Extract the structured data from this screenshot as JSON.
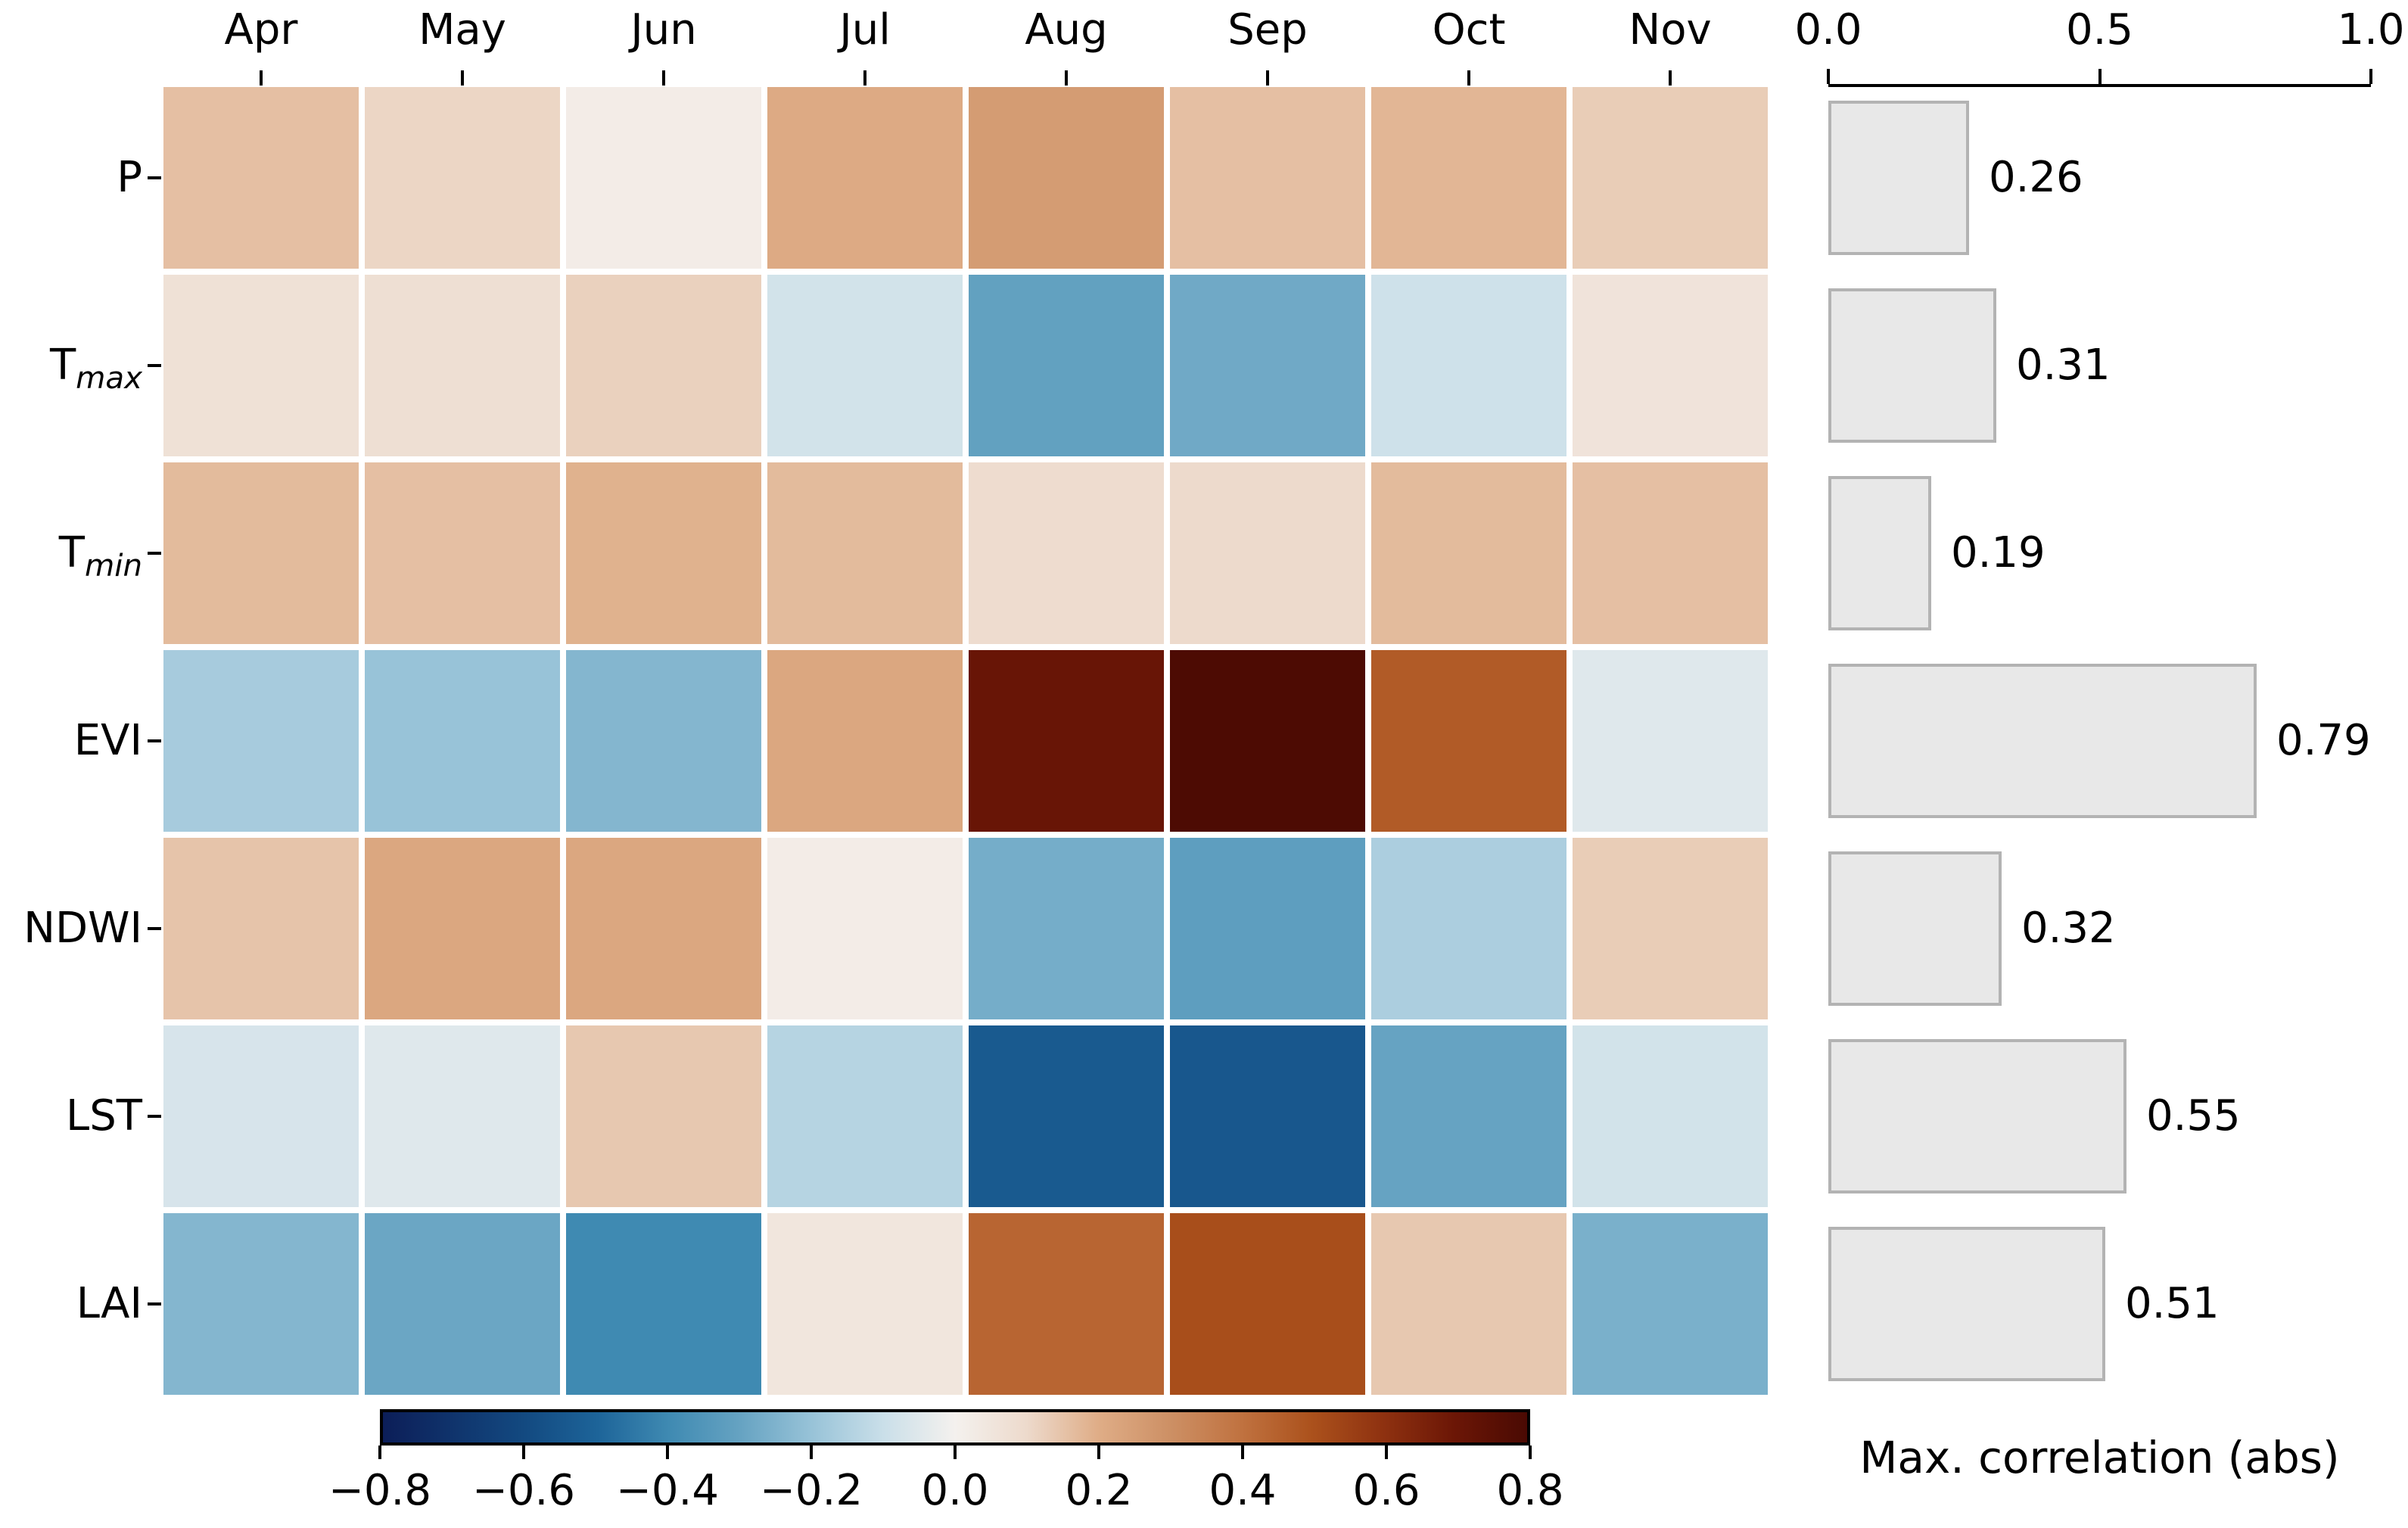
{
  "chart_data": {
    "type": "heatmap",
    "heatmap": {
      "columns": [
        "Apr",
        "May",
        "Jun",
        "Jul",
        "Aug",
        "Sep",
        "Oct",
        "Nov"
      ],
      "rows": [
        {
          "label": "P",
          "sub": ""
        },
        {
          "label": "T",
          "sub": "max"
        },
        {
          "label": "T",
          "sub": "min"
        },
        {
          "label": "EVI",
          "sub": ""
        },
        {
          "label": "NDWI",
          "sub": ""
        },
        {
          "label": "LST",
          "sub": ""
        },
        {
          "label": "LAI",
          "sub": ""
        }
      ],
      "values": [
        [
          0.16,
          0.11,
          0.02,
          0.21,
          0.26,
          0.16,
          0.18,
          0.13
        ],
        [
          0.07,
          0.08,
          0.12,
          -0.08,
          -0.31,
          -0.28,
          -0.09,
          0.06
        ],
        [
          0.17,
          0.16,
          0.19,
          0.17,
          0.09,
          0.1,
          0.17,
          0.16
        ],
        [
          -0.17,
          -0.2,
          -0.24,
          0.22,
          0.71,
          0.79,
          0.47,
          -0.05
        ],
        [
          0.15,
          0.22,
          0.22,
          0.02,
          -0.27,
          -0.32,
          -0.16,
          0.13
        ],
        [
          -0.07,
          -0.05,
          0.14,
          -0.14,
          -0.54,
          -0.55,
          -0.3,
          -0.08
        ],
        [
          -0.24,
          -0.29,
          -0.4,
          0.05,
          0.44,
          0.51,
          0.14,
          -0.26
        ]
      ],
      "vmin": -0.8,
      "vmax": 0.8,
      "colormap_anchors": [
        [
          -0.8,
          "#0c1e58"
        ],
        [
          -0.6,
          "#134a81"
        ],
        [
          -0.5,
          "#1d6499"
        ],
        [
          -0.4,
          "#3f8ab2"
        ],
        [
          -0.3,
          "#66a3c2"
        ],
        [
          -0.2,
          "#98c3d8"
        ],
        [
          -0.1,
          "#cadfe9"
        ],
        [
          0.0,
          "#f4f1ee"
        ],
        [
          0.1,
          "#eddacc"
        ],
        [
          0.2,
          "#dfad87"
        ],
        [
          0.3,
          "#cd9065"
        ],
        [
          0.4,
          "#c07240"
        ],
        [
          0.5,
          "#ab511c"
        ],
        [
          0.6,
          "#8e3110"
        ],
        [
          0.7,
          "#6b1606"
        ],
        [
          0.8,
          "#4a0a03"
        ]
      ]
    },
    "bar": {
      "values": [
        0.26,
        0.31,
        0.19,
        0.79,
        0.32,
        0.55,
        0.51
      ],
      "labels": [
        "0.26",
        "0.31",
        "0.19",
        "0.79",
        "0.32",
        "0.55",
        "0.51"
      ],
      "axis_ticks": [
        "0.0",
        "0.5",
        "1.0"
      ],
      "axis_range": [
        0.0,
        1.0
      ],
      "xlabel": "Max. correlation (abs)",
      "bar_fill": "#e8e8e8",
      "bar_border": "#b3b3b3"
    },
    "colorbar": {
      "tick_labels": [
        "−0.8",
        "−0.6",
        "−0.4",
        "−0.2",
        "0.0",
        "0.2",
        "0.4",
        "0.6",
        "0.8"
      ]
    }
  }
}
